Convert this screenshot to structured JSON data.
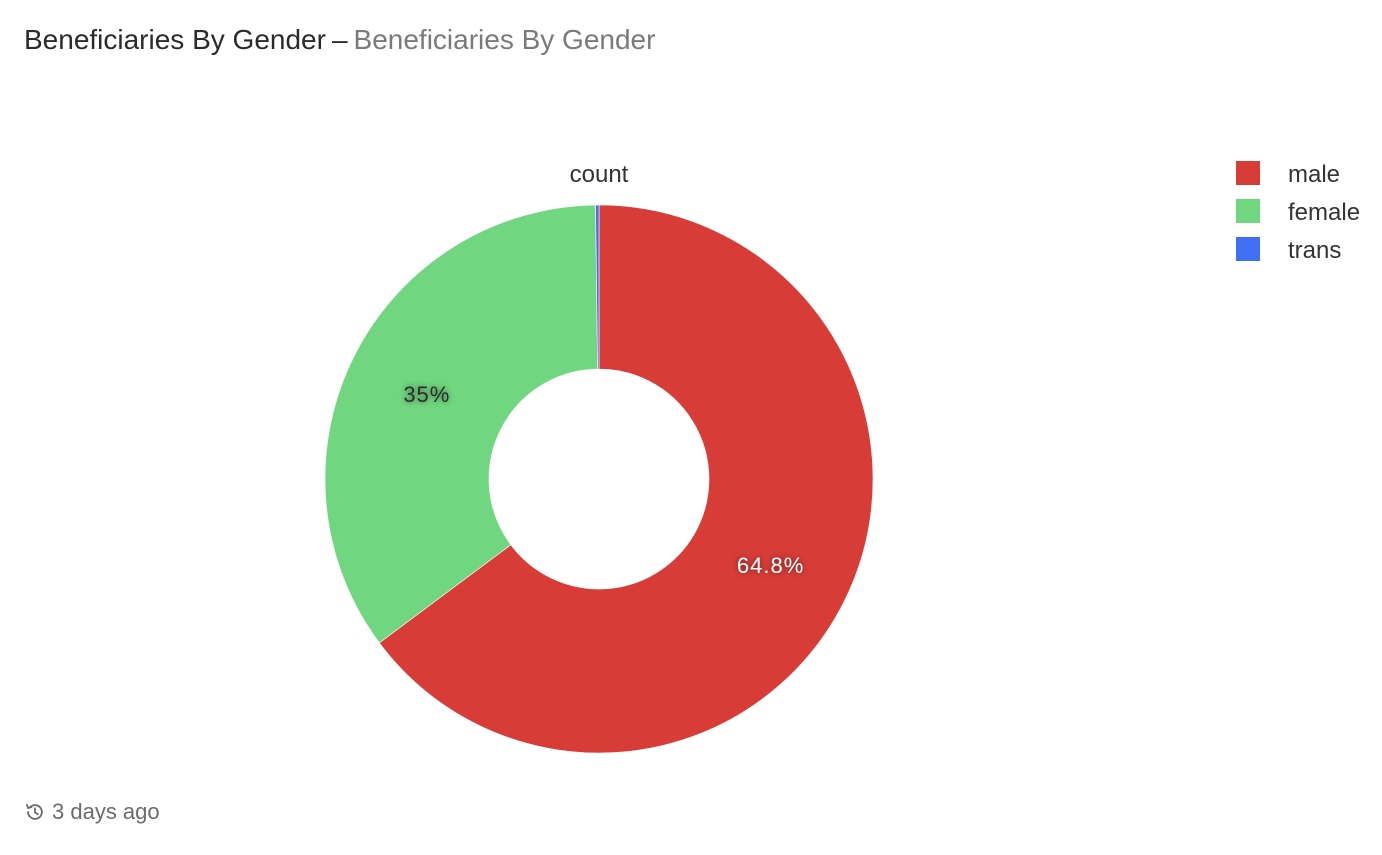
{
  "header": {
    "title": "Beneficiaries By Gender",
    "separator": "–",
    "subtitle": "Beneficiaries By Gender"
  },
  "footer": {
    "icon": "history-icon",
    "updated": "3 days ago"
  },
  "chart_data": {
    "type": "pie",
    "variant": "donut",
    "series_name": "count",
    "categories": [
      "male",
      "female",
      "trans"
    ],
    "values": [
      64.8,
      35.0,
      0.2
    ],
    "data_labels": [
      "64.8%",
      "35%",
      ""
    ],
    "colors": [
      "#d73c37",
      "#71d680",
      "#4070f7"
    ],
    "legend": {
      "position": "top-right",
      "entries": [
        "male",
        "female",
        "trans"
      ]
    }
  }
}
